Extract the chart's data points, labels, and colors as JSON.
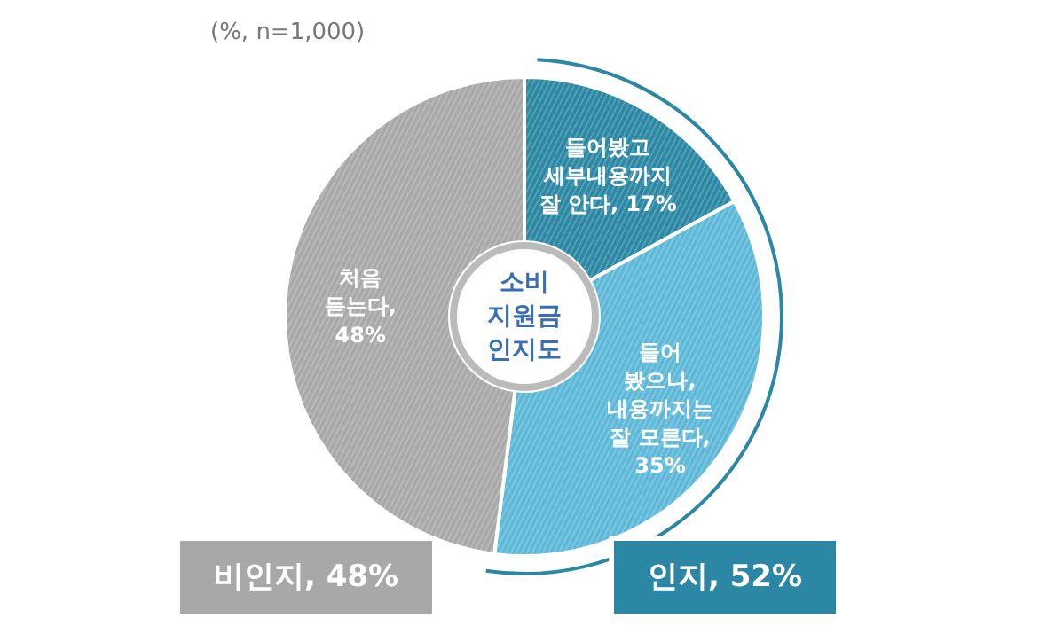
{
  "chart_data": {
    "type": "donut",
    "title": "소비\n지원금\n인지도",
    "subtitle": "(%, n=1,000)",
    "categories": [
      "들어봤고\n세부내용까지\n잘 안다, 17%",
      "들어\n봤으나,\n내용까지는\n잘 모른다,\n35%",
      "처음\n듣는다,\n48%"
    ],
    "values": [
      17,
      35,
      48
    ],
    "colors": [
      "#2b87a3",
      "#5db8d8",
      "#a8a8a8"
    ],
    "annotations": [
      "비인지, 48%",
      "인지, 52%"
    ]
  }
}
